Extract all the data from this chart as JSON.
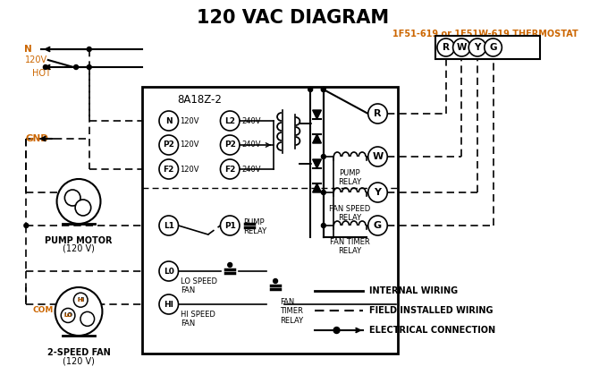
{
  "title": "120 VAC DIAGRAM",
  "bg_color": "#ffffff",
  "line_color": "#000000",
  "orange_color": "#cc6600",
  "thermostat_label": "1F51-619 or 1F51W-619 THERMOSTAT",
  "board_label": "8A18Z-2",
  "thermostat_terminals": [
    "R",
    "W",
    "Y",
    "G"
  ],
  "left_terms": [
    [
      "N",
      120
    ],
    [
      "P2",
      120
    ],
    [
      "F2",
      120
    ]
  ],
  "right_terms": [
    [
      "L2",
      240
    ],
    [
      "P2",
      240
    ],
    [
      "F2",
      240
    ]
  ],
  "relay_coil_labels": [
    "PUMP\nRELAY",
    "FAN SPEED\nRELAY",
    "FAN TIMER\nRELAY"
  ],
  "relay_term_labels": [
    "R",
    "W",
    "Y",
    "G"
  ],
  "lower_terms": [
    "L1",
    "L0",
    "HI"
  ],
  "lower_right_terms": [
    "P1"
  ],
  "fan_cap_labels": [
    "LO SPEED\nFAN",
    "HI SPEED\nFAN"
  ],
  "fan_timer_label": "FAN\nTIMER\nRELAY",
  "pump_relay_lower_label": "PUMP\nRELAY",
  "legend": [
    {
      "label": "INTERNAL WIRING",
      "style": "solid"
    },
    {
      "label": "FIELD INSTALLED WIRING",
      "style": "dashed"
    },
    {
      "label": "ELECTRICAL CONNECTION",
      "style": "dot_arrow"
    }
  ]
}
